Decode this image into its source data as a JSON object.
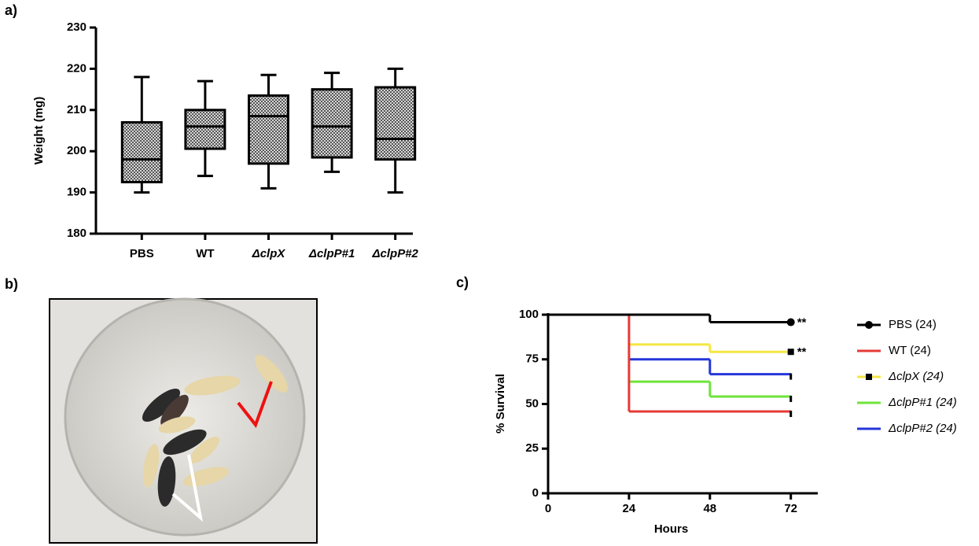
{
  "chart_data": [
    {
      "type": "box",
      "panel_label": "a)",
      "y_label": "Weight (mg)",
      "categories": [
        "PBS",
        "WT",
        "ΔclpX",
        "ΔclpP#1",
        "ΔclpP#2"
      ],
      "min": [
        190,
        194,
        191,
        195,
        190
      ],
      "q1": [
        192.5,
        200.6,
        197,
        198.5,
        198
      ],
      "median": [
        198,
        206,
        208.5,
        206,
        203
      ],
      "q3": [
        207,
        210,
        213.5,
        215,
        215.5
      ],
      "max": [
        218,
        217,
        218.5,
        219,
        220
      ],
      "color": "#8c8c8c",
      "ylim": [
        180,
        230
      ],
      "yticks": [
        180,
        190,
        200,
        210,
        220,
        230
      ]
    },
    {
      "type": "survival",
      "panel_label": "c)",
      "x_label": "Hours",
      "y_label": "% Survival",
      "xlim": [
        0,
        80
      ],
      "xticks": [
        0,
        24,
        48,
        72
      ],
      "ylim": [
        0,
        100
      ],
      "yticks": [
        0,
        25,
        50,
        75,
        100
      ],
      "series": [
        {
          "name": "PBS (24)",
          "color": "#000000",
          "marker": "circle",
          "annotation": "**",
          "x": [
            0,
            48,
            72
          ],
          "values": [
            100,
            95.8,
            95.8
          ]
        },
        {
          "name": "WT (24)",
          "color": "#e53935",
          "marker": "tick",
          "x": [
            24,
            24,
            72
          ],
          "values": [
            100,
            45.8,
            45.8
          ]
        },
        {
          "name": "ΔclpX (24)",
          "color": "#f5e642",
          "marker": "square",
          "annotation": "**",
          "x": [
            24,
            48,
            72
          ],
          "values": [
            83.3,
            79.2,
            79.2
          ]
        },
        {
          "name": "ΔclpP#1 (24)",
          "color": "#6ee33a",
          "marker": "tick",
          "x": [
            24,
            48,
            72
          ],
          "values": [
            62.5,
            54.2,
            54.2
          ]
        },
        {
          "name": "ΔclpP#2 (24)",
          "color": "#2436d9",
          "marker": "tick",
          "x": [
            24,
            48,
            72
          ],
          "values": [
            75,
            66.7,
            66.7
          ]
        }
      ]
    }
  ],
  "photo": {
    "panel_label": "b)"
  }
}
